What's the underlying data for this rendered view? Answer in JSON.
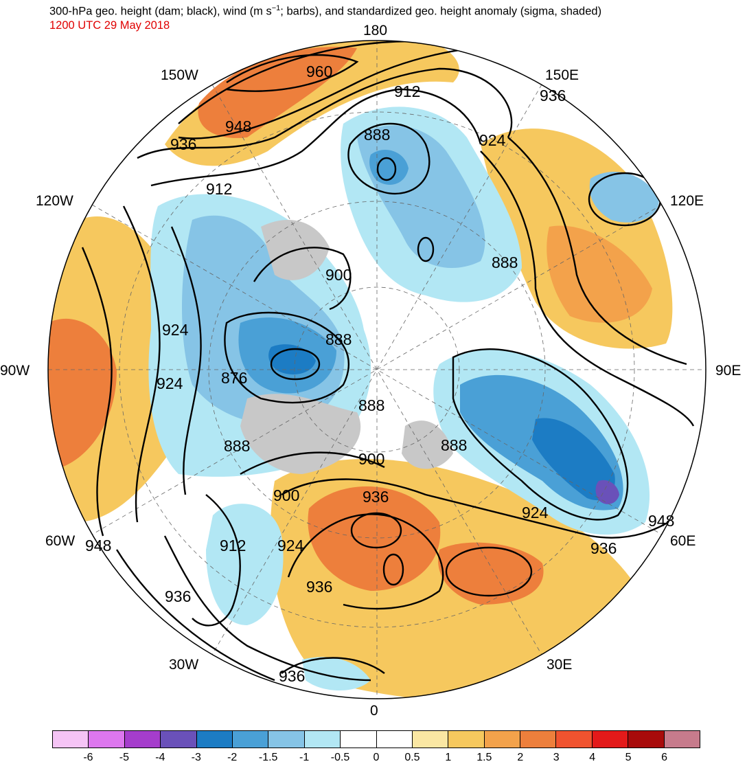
{
  "header": {
    "title_part1": "300-hPa geo. height (dam; black), wind (m s",
    "title_sup": "−1",
    "title_part2": "; barbs), and standardized geo. height anomaly (sigma, shaded)",
    "subtitle": "1200 UTC 29 May 2018"
  },
  "map": {
    "projection": "north polar stereographic",
    "longitude_labels": {
      "top": "180",
      "bottom": "0",
      "left": "90W",
      "right": "90E",
      "upper_left_1": "150W",
      "upper_left_2": "120W",
      "upper_right_1": "150E",
      "upper_right_2": "120E",
      "lower_left_1": "60W",
      "lower_left_2": "30W",
      "lower_right_1": "60E",
      "lower_right_2": "30E"
    },
    "contour_labels": [
      "960",
      "948",
      "936",
      "912",
      "888",
      "936",
      "924",
      "912",
      "900",
      "888",
      "924",
      "924",
      "888",
      "876",
      "888",
      "888",
      "888",
      "900",
      "900",
      "936",
      "924",
      "948",
      "936",
      "948",
      "912",
      "924",
      "936",
      "936",
      "936"
    ]
  },
  "colorbar": {
    "colors": [
      "#f5c4f5",
      "#dd77ee",
      "#a53dcc",
      "#6a51b9",
      "#1c7cc4",
      "#4aa0d6",
      "#86c4e6",
      "#b2e7f4",
      "#ffffff",
      "#ffffff",
      "#fae7a3",
      "#f6c85e",
      "#f3a24b",
      "#ed7f3c",
      "#f0532f",
      "#e31a1a",
      "#a80b0b",
      "#c77b8c"
    ],
    "tick_labels": [
      "-6",
      "-5",
      "-4",
      "-3",
      "-2",
      "-1.5",
      "-1",
      "-0.5",
      "0",
      "0.5",
      "1",
      "1.5",
      "2",
      "3",
      "4",
      "5",
      "6"
    ]
  }
}
